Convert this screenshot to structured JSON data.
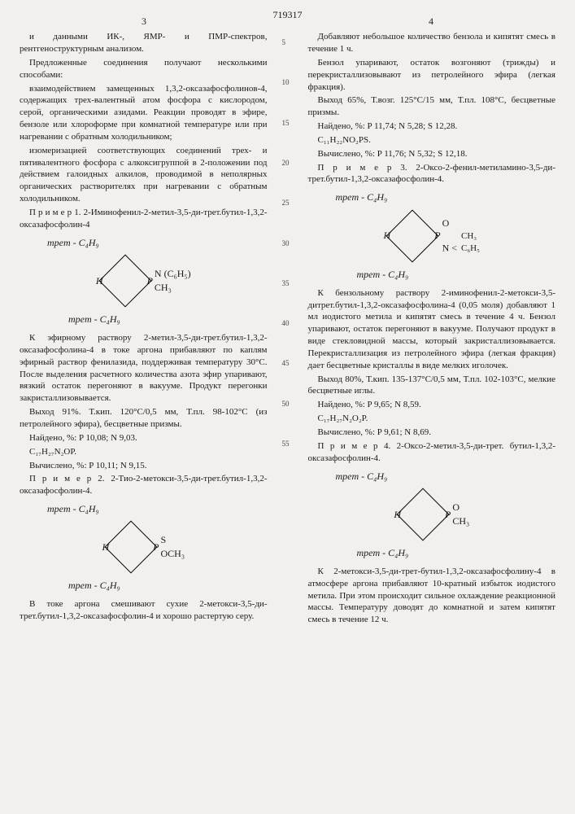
{
  "doc_number": "719317",
  "col_left_num": "3",
  "col_right_num": "4",
  "line_markers": [
    "5",
    "10",
    "15",
    "20",
    "25",
    "30",
    "35",
    "40",
    "45",
    "50",
    "55"
  ],
  "left": {
    "p1": "и данными ИК-, ЯМР- и ПМР-спектров, рентгеноструктурным анализом.",
    "p2": "Предложенные соединения получают несколькими способами:",
    "p3": "взаимодействием замещенных 1,3,2-оксазафосфолинов-4, содержащих трех-валентный атом фосфора с кислородом, серой, органическими азидами. Реакции проводят в эфире, бензоле или хлороформе при комнатной температуре или при нагревании с обратным холодильником;",
    "p4": "изомеризацией соответствующих соединений трех- и пятивалентного фосфора с алкоксигруппой в 2-положении под действием галоидных алкилов, проводимой в неполярных органических растворителях при нагревании с обратным холодильником.",
    "ex1_title": "П р и м е р  1. 2-Иминофенил-2-метил-3,5-ди-трет.бутил-1,3,2-оксазафосфолин-4",
    "f1_top": "mpem - C₄H₉",
    "f1_right1": "N (C₆H₅)",
    "f1_right2": "CH₃",
    "f1_bot": "mpem - C₄H₉",
    "p5": "К эфирному раствору 2-метил-3,5-ди-трет.бутил-1,3,2-оксазафосфолина-4 в токе аргона прибавляют по каплям эфирный раствор фенилазида, поддерживая температуру 30°С. После выделения расчетного количества азота эфир упаривают, вязкий остаток перегоняют в вакууме. Продукт перегонки закристаллизовывается.",
    "p6": "Выход 91%. Т.кип. 120°С/0,5 мм, Т.пл. 98-102°С (из петролейного эфира), бесцветные призмы.",
    "p7": "Найдено, %: P 10,08; N 9,03.",
    "p8": "С₁₇H₂₇N₂OP.",
    "p9": "Вычислено, %: P 10,11; N 9,15.",
    "ex2_title": "П р и м е р  2. 2-Тио-2-метокси-3,5-ди-трет.бутил-1,3,2-оксазафосфолин-4.",
    "f2_top": "mpem - C₄H₉",
    "f2_right1": "S",
    "f2_right2": "OCH₃",
    "f2_bot": "mpem - C₄H₉",
    "p10": "В токе аргона смешивают сухие 2-метокси-3,5-ди-трет.бутил-1,3,2-оксазафосфолин-4 и хорошо растертую серу."
  },
  "right": {
    "p1": "Добавляют небольшое количество бензола и кипятят смесь в течение 1 ч.",
    "p2": "Бензол упаривают, остаток возгоняют (трижды) и перекристаллизовывают из петролейного эфира (легкая фракция).",
    "p3": "Выход 65%, Т.возг. 125°С/15 мм, Т.пл. 108°С, бесцветные призмы.",
    "p4": "Найдено, %: P 11,74; N 5,28; S 12,28.",
    "p5": "С₁₁H₂₂NO₂PS.",
    "p6": "Вычислено, %: P 11,76; N 5,32; S 12,18.",
    "ex3_title": "П р и м е р  3. 2-Оксо-2-фенил-метиламино-3,5-ди-трет.бутил-1,3,2-оксазафосфолин-4.",
    "f3_top": "mpem - C₄H₉",
    "f3_right1": "O",
    "f3_right2a": "CH₃",
    "f3_right2b": "C₆H₅",
    "f3_bot": "mpem - C₄H₉",
    "p7": "К бензольному раствору 2-иминофенил-2-метокси-3,5-дитрет.бутил-1,3,2-оксазафосфолина-4 (0,05 моля) добавляют 1 мл иодистого метила и кипятят смесь в течение 4 ч. Бензол упаривают, остаток перегоняют в вакууме. Получают продукт в виде стекловидной массы, который закристаллизовывается. Перекристаллизация из петролейного эфира (легкая фракция) дает бесцветные кристаллы в виде мелких иголочек.",
    "p8": "Выход 80%, Т.кип. 135-137°С/0,5 мм, Т.пл. 102-103°С, мелкие бесцветные иглы.",
    "p9": "Найдено, %: P 9,65; N 8,59.",
    "p10": "С₁₇H₂₇N₂O₂P.",
    "p11": "Вычислено, %: P 9,61; N 8,69.",
    "ex4_title": "П р и м е р  4. 2-Оксо-2-метил-3,5-ди-трет. бутил-1,3,2-оксазафосфолин-4.",
    "f4_top": "mpem - C₄H₉",
    "f4_right1": "O",
    "f4_right2": "CH₃",
    "f4_bot": "mpem - C₄H₉",
    "p12": "К 2-метокси-3,5-ди-трет-бутил-1,3,2-оксазафосфолину-4 в атмосфере аргона прибавляют 10-кратный избыток иодистого метила. При этом происходит сильное охлаждение реакционной массы. Температуру доводят до комнатной и затем кипятят  смесь в течение 12 ч."
  }
}
